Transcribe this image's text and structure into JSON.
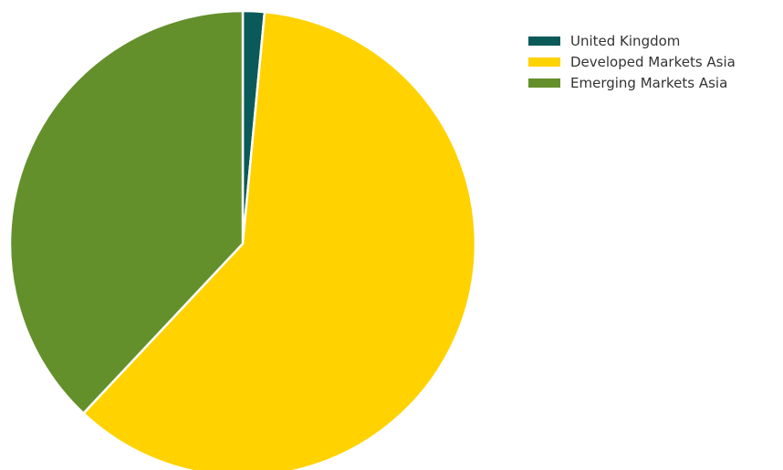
{
  "chart_data": {
    "type": "pie",
    "title": "",
    "slices": [
      {
        "label": "United Kingdom",
        "value": 1.5,
        "color": "#0b5a5a"
      },
      {
        "label": "Developed Markets Asia",
        "value": 60.5,
        "color": "#ffd200"
      },
      {
        "label": "Emerging Markets Asia",
        "value": 38.0,
        "color": "#64902c"
      }
    ],
    "start_angle_deg": 0,
    "direction": "clockwise",
    "legend_position": "top-right"
  }
}
